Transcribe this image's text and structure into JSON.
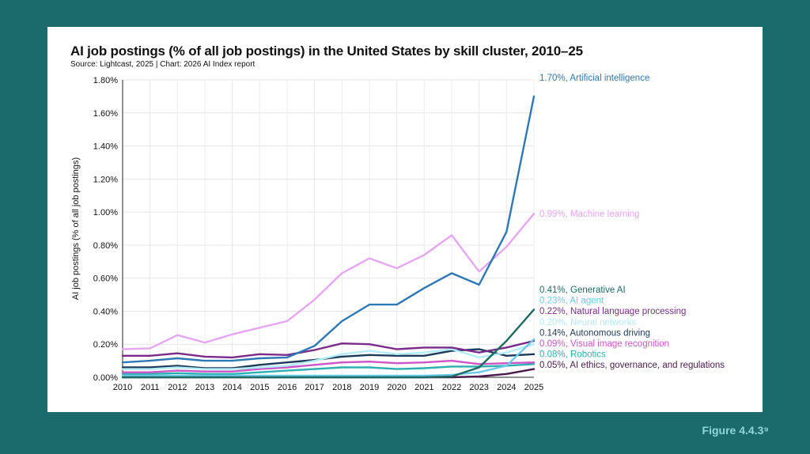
{
  "figure_label": "Figure 4.4.3⁹",
  "chart_data": {
    "type": "line",
    "title": "AI job postings (% of all job postings) in the United States by skill cluster, 2010–25",
    "subtitle": "Source: Lightcast, 2025 | Chart: 2026 AI Index report",
    "ylabel": "AI job postings (% of all job postings)",
    "xlabel": "",
    "x": [
      "2010",
      "2011",
      "2012",
      "2013",
      "2014",
      "2015",
      "2016",
      "2017",
      "2018",
      "2019",
      "2020",
      "2021",
      "2022",
      "2023",
      "2024",
      "2025"
    ],
    "ylim": [
      0,
      1.8
    ],
    "yticks": [
      "0.00%",
      "0.20%",
      "0.40%",
      "0.60%",
      "0.80%",
      "1.00%",
      "1.20%",
      "1.40%",
      "1.60%",
      "1.80%"
    ],
    "grid": true,
    "series": [
      {
        "name": "Artificial intelligence",
        "end_label": "1.70%, Artificial intelligence",
        "color": "#2e78b5",
        "values": [
          0.09,
          0.1,
          0.115,
          0.1,
          0.1,
          0.115,
          0.12,
          0.19,
          0.34,
          0.44,
          0.44,
          0.54,
          0.63,
          0.56,
          0.88,
          1.7
        ]
      },
      {
        "name": "Machine learning",
        "end_label": "0.99%, Machine learning",
        "color": "#e7a6f4",
        "values": [
          0.17,
          0.175,
          0.255,
          0.21,
          0.26,
          0.3,
          0.34,
          0.47,
          0.63,
          0.72,
          0.66,
          0.74,
          0.86,
          0.64,
          0.79,
          0.99
        ]
      },
      {
        "name": "Generative AI",
        "end_label": "0.41%, Generative AI",
        "color": "#1b6b62",
        "values": [
          0,
          0,
          0,
          0,
          0,
          0,
          0,
          0,
          0,
          0,
          0,
          0,
          0.005,
          0.06,
          0.22,
          0.41
        ]
      },
      {
        "name": "AI agent",
        "end_label": "0.23%, AI agent",
        "color": "#6cc9ea",
        "values": [
          0.01,
          0.01,
          0.01,
          0.01,
          0.01,
          0.01,
          0.01,
          0.01,
          0.01,
          0.01,
          0.01,
          0.01,
          0.015,
          0.03,
          0.07,
          0.23
        ]
      },
      {
        "name": "Natural language processing",
        "end_label": "0.22%, Natural language processing",
        "color": "#7a2b8a",
        "values": [
          0.13,
          0.13,
          0.145,
          0.125,
          0.12,
          0.14,
          0.135,
          0.165,
          0.205,
          0.2,
          0.17,
          0.18,
          0.18,
          0.15,
          0.18,
          0.22
        ]
      },
      {
        "name": "Neural networks",
        "end_label": "0.20%, Neural networks",
        "color": "#b3ecf7",
        "values": [
          0.05,
          0.05,
          0.06,
          0.05,
          0.05,
          0.06,
          0.07,
          0.1,
          0.14,
          0.16,
          0.14,
          0.15,
          0.17,
          0.12,
          0.15,
          0.2
        ]
      },
      {
        "name": "Autonomous driving",
        "end_label": "0.14%, Autonomous driving",
        "color": "#1e3a5a",
        "values": [
          0.06,
          0.06,
          0.07,
          0.055,
          0.055,
          0.075,
          0.09,
          0.105,
          0.125,
          0.135,
          0.13,
          0.13,
          0.16,
          0.17,
          0.13,
          0.14
        ]
      },
      {
        "name": "Visual image recognition",
        "end_label": "0.09%, Visual image recognition",
        "color": "#cc55c7",
        "values": [
          0.03,
          0.03,
          0.04,
          0.035,
          0.035,
          0.05,
          0.06,
          0.075,
          0.09,
          0.095,
          0.085,
          0.09,
          0.1,
          0.08,
          0.085,
          0.09
        ]
      },
      {
        "name": "Robotics",
        "end_label": "0.08%, Robotics",
        "color": "#2fb0b0",
        "values": [
          0.02,
          0.02,
          0.025,
          0.02,
          0.02,
          0.03,
          0.04,
          0.05,
          0.06,
          0.06,
          0.05,
          0.055,
          0.065,
          0.065,
          0.07,
          0.08
        ]
      },
      {
        "name": "AI ethics, governance, and regulations",
        "end_label": "0.05%, AI ethics, governance, and regulations",
        "color": "#4a1a4c",
        "values": [
          0,
          0,
          0,
          0,
          0,
          0,
          0,
          0,
          0,
          0,
          0,
          0,
          0,
          0.005,
          0.02,
          0.05
        ]
      }
    ]
  }
}
